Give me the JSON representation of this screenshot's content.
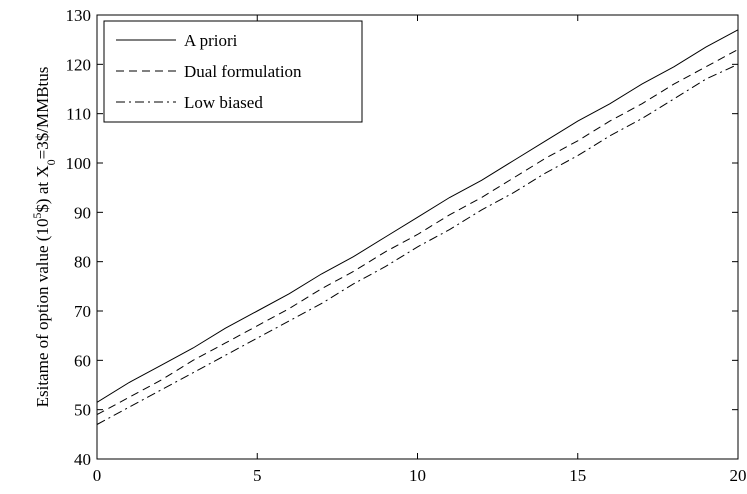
{
  "chart_data": {
    "type": "line",
    "title": "",
    "xlabel": "",
    "ylabel": "Esitame of option value (10^5$) at X_0=3$/MMBtus",
    "ylabel_parts": {
      "prefix": "Esitame of option value (10",
      "exp": "5",
      "mid": "$) at X",
      "sub": "0",
      "suffix": "=3$/MMBtus"
    },
    "xlim": [
      0,
      20
    ],
    "ylim": [
      40,
      130
    ],
    "xticks": [
      0,
      5,
      10,
      15,
      20
    ],
    "yticks": [
      40,
      50,
      60,
      70,
      80,
      90,
      100,
      110,
      120,
      130
    ],
    "grid": false,
    "legend_position": "top-left",
    "series": [
      {
        "name": "A priori",
        "style": "solid",
        "x": [
          0,
          1,
          2,
          3,
          4,
          5,
          6,
          7,
          8,
          9,
          10,
          11,
          12,
          13,
          14,
          15,
          16,
          17,
          18,
          19,
          20
        ],
        "values": [
          51.5,
          55.5,
          59,
          62.5,
          66.5,
          70,
          73.5,
          77.5,
          81,
          85,
          89,
          93,
          96.5,
          100.5,
          104.5,
          108.5,
          112,
          116,
          119.5,
          123.5,
          127
        ]
      },
      {
        "name": "Dual formulation",
        "style": "dashed",
        "x": [
          0,
          1,
          2,
          3,
          4,
          5,
          6,
          7,
          8,
          9,
          10,
          11,
          12,
          13,
          14,
          15,
          16,
          17,
          18,
          19,
          20
        ],
        "values": [
          49,
          52.5,
          56,
          60,
          63.5,
          67,
          70.5,
          74.5,
          78,
          82,
          85.5,
          89.5,
          93,
          97,
          101,
          104.5,
          108.5,
          112,
          116,
          119.5,
          123
        ]
      },
      {
        "name": "Low biased",
        "style": "dashdot",
        "x": [
          0,
          1,
          2,
          3,
          4,
          5,
          6,
          7,
          8,
          9,
          10,
          11,
          12,
          13,
          14,
          15,
          16,
          17,
          18,
          19,
          20
        ],
        "values": [
          47,
          50.5,
          54,
          57.5,
          61,
          64.5,
          68,
          71.5,
          75.5,
          79,
          83,
          86.5,
          90.5,
          94,
          98,
          101.5,
          105.5,
          109,
          113,
          117,
          120
        ]
      }
    ]
  }
}
